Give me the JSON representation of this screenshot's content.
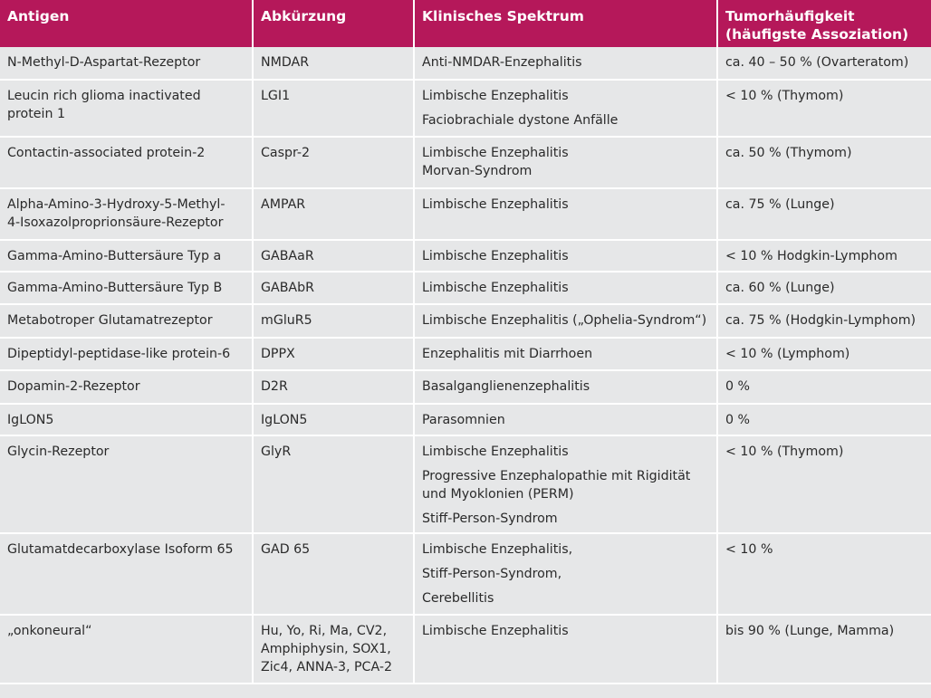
{
  "headers": [
    "Antigen",
    "Abkürzung",
    "Klinisches Spektrum",
    "Tumorhäufigkeit (häufigste Assoziation)"
  ],
  "rows": [
    {
      "antigen": [
        "N-Methyl-D-Aspartat-Rezeptor"
      ],
      "abbr": [
        "NMDAR"
      ],
      "spectrum": [
        [
          "Anti-NMDAR-Enzephalitis"
        ]
      ],
      "freq": [
        "ca. 40 – 50 % (Ovarteratom)"
      ]
    },
    {
      "antigen": [
        "Leucin rich glioma inactivated",
        "protein 1"
      ],
      "abbr": [
        "LGI1"
      ],
      "spectrum": [
        [
          "Limbische Enzephalitis"
        ],
        [
          "Faciobrachiale dystone Anfälle"
        ]
      ],
      "freq": [
        "< 10 % (Thymom)"
      ]
    },
    {
      "antigen": [
        "Contactin-associated protein-2"
      ],
      "abbr": [
        "Caspr-2"
      ],
      "spectrum": [
        [
          "Limbische Enzephalitis",
          "Morvan-Syndrom"
        ]
      ],
      "freq": [
        "ca. 50 % (Thymom)"
      ]
    },
    {
      "antigen": [
        "Alpha-Amino-3-Hydroxy-5-Methyl-",
        "4-Isoxazolproprionsäure-Rezeptor"
      ],
      "abbr": [
        "AMPAR"
      ],
      "spectrum": [
        [
          "Limbische Enzephalitis"
        ]
      ],
      "freq": [
        "ca. 75 % (Lunge)"
      ]
    },
    {
      "antigen": [
        "Gamma-Amino-Buttersäure Typ a"
      ],
      "abbr": [
        "GABAaR"
      ],
      "spectrum": [
        [
          "Limbische Enzephalitis"
        ]
      ],
      "freq": [
        "< 10 % Hodgkin-Lymphom"
      ]
    },
    {
      "antigen": [
        "Gamma-Amino-Buttersäure Typ B"
      ],
      "abbr": [
        "GABAbR"
      ],
      "spectrum": [
        [
          "Limbische Enzephalitis"
        ]
      ],
      "freq": [
        "ca. 60 % (Lunge)"
      ]
    },
    {
      "antigen": [
        "Metabotroper Glutamatrezeptor"
      ],
      "abbr": [
        "mGluR5"
      ],
      "spectrum": [
        [
          "Limbische Enzephalitis („Ophelia-Syndrom“)"
        ]
      ],
      "freq": [
        "ca. 75 % (Hodgkin-Lymphom)"
      ]
    },
    {
      "antigen": [
        "Dipeptidyl-peptidase-like protein-6"
      ],
      "abbr": [
        "DPPX"
      ],
      "spectrum": [
        [
          "Enzephalitis mit Diarrhoen"
        ]
      ],
      "freq": [
        "< 10 % (Lymphom)"
      ]
    },
    {
      "antigen": [
        "Dopamin-2-Rezeptor"
      ],
      "abbr": [
        "D2R"
      ],
      "spectrum": [
        [
          "Basalganglienenzephalitis"
        ]
      ],
      "freq": [
        "0 %"
      ]
    },
    {
      "antigen": [
        "IgLON5"
      ],
      "abbr": [
        "IgLON5"
      ],
      "spectrum": [
        [
          "Parasomnien"
        ]
      ],
      "freq": [
        "0 %"
      ]
    },
    {
      "antigen": [
        "Glycin-Rezeptor"
      ],
      "abbr": [
        "GlyR"
      ],
      "spectrum": [
        [
          "Limbische Enzephalitis"
        ],
        [
          "Progressive Enzephalopathie mit Rigidität",
          "und Myoklonien (PERM)"
        ],
        [
          "Stiff-Person-Syndrom"
        ]
      ],
      "freq": [
        "< 10 % (Thymom)"
      ]
    },
    {
      "antigen": [
        "Glutamatdecarboxylase Isoform 65"
      ],
      "abbr": [
        "GAD 65"
      ],
      "spectrum": [
        [
          "Limbische Enzephalitis,"
        ],
        [
          "Stiff-Person-Syndrom,"
        ],
        [
          "Cerebellitis"
        ]
      ],
      "freq": [
        "< 10 %"
      ]
    },
    {
      "antigen": [
        "„onkoneural“"
      ],
      "abbr": [
        "Hu, Yo, Ri, Ma, CV2,",
        "Amphiphysin, SOX1,",
        "Zic4, ANNA-3, PCA-2"
      ],
      "spectrum": [
        [
          "Limbische Enzephalitis"
        ]
      ],
      "freq": [
        "bis 90 % (Lunge, Mamma)"
      ]
    }
  ]
}
